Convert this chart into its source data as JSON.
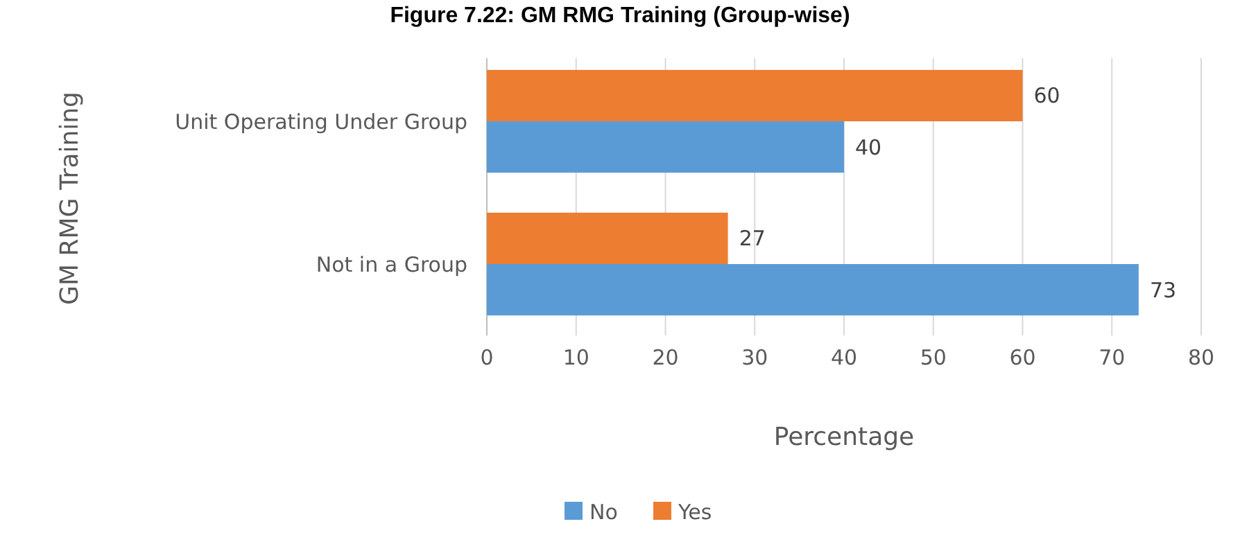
{
  "chart_data": {
    "type": "bar",
    "orientation": "horizontal",
    "title": "Figure 7.22: GM RMG Training (Group-wise)",
    "xlabel": "Percentage",
    "ylabel": "GM RMG Training",
    "categories": [
      "Unit Operating Under Group",
      "Not in a Group"
    ],
    "series": [
      {
        "name": "No",
        "color": "#5b9bd5",
        "values": [
          40,
          73
        ]
      },
      {
        "name": "Yes",
        "color": "#ed7d31",
        "values": [
          60,
          27
        ]
      }
    ],
    "xlim": [
      0,
      80
    ],
    "xticks": [
      0,
      10,
      20,
      30,
      40,
      50,
      60,
      70,
      80
    ],
    "grid": "x",
    "legend": "bottom",
    "data_labels": true
  }
}
